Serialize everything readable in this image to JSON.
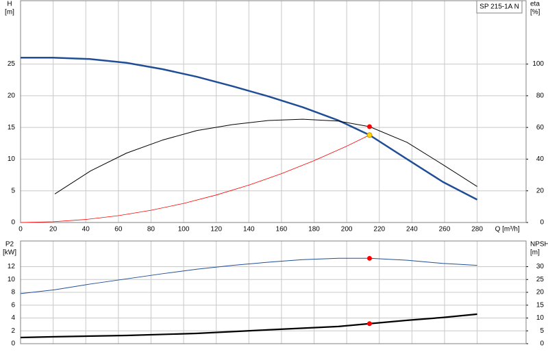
{
  "chart_data": [
    {
      "type": "line",
      "title": "SP 215-1A N",
      "x_label": "Q [m³/h]",
      "y_label": "H",
      "y_unit": "[m]",
      "y2_label": "eta",
      "y2_unit": "[%]",
      "xlim": [
        0,
        310
      ],
      "xticks": [
        0,
        20,
        40,
        60,
        80,
        100,
        120,
        140,
        160,
        180,
        200,
        220,
        240,
        260,
        280
      ],
      "xtick_labels": true,
      "ylim": [
        0,
        35
      ],
      "yticks": [
        0,
        5,
        10,
        15,
        20,
        25
      ],
      "y2lim": [
        0,
        140
      ],
      "y2ticks": [
        0,
        20,
        40,
        60,
        80,
        100
      ],
      "grid": true,
      "series": [
        {
          "color": "#1f4e96",
          "width": 2.5,
          "axis": "y",
          "x": [
            0,
            20,
            42,
            65,
            87,
            108,
            130,
            152,
            173,
            195,
            214,
            237,
            259,
            280
          ],
          "values": [
            26,
            26,
            25.8,
            25.2,
            24.2,
            23,
            21.5,
            19.9,
            18.2,
            16.1,
            13.8,
            10,
            6.4,
            3.6
          ]
        },
        {
          "color": "#000000",
          "width": 1,
          "axis": "y2",
          "x": [
            21,
            43,
            65,
            87,
            108,
            130,
            152,
            173,
            195,
            214,
            237,
            259,
            280
          ],
          "values": [
            18,
            32.6,
            43.8,
            52,
            58,
            61.8,
            64.4,
            65.2,
            64,
            60.5,
            50.6,
            36.5,
            22.7
          ]
        },
        {
          "color": "#ff0000",
          "width": 0.8,
          "axis": "y",
          "x": [
            0,
            20,
            40,
            60,
            80,
            100,
            120,
            140,
            160,
            180,
            200,
            214
          ],
          "values": [
            0,
            0.12,
            0.48,
            1.08,
            1.93,
            3.01,
            4.34,
            5.9,
            7.71,
            9.76,
            12.05,
            13.8
          ]
        }
      ],
      "points": [
        {
          "x": 214,
          "y": 60.5,
          "axis": "y2",
          "color": "#ff0000"
        },
        {
          "x": 214,
          "y": 13.8,
          "axis": "y",
          "color": "#ffd700"
        }
      ]
    },
    {
      "type": "line",
      "y_label": "P2",
      "y_unit": "[kW]",
      "y2_label": "NPSH",
      "y2_unit": "[m]",
      "xlim": [
        0,
        310
      ],
      "xticks": [
        0,
        20,
        40,
        60,
        80,
        100,
        120,
        140,
        160,
        180,
        200,
        220,
        240,
        260,
        280
      ],
      "xtick_labels": false,
      "ylim": [
        0,
        16
      ],
      "yticks": [
        0,
        2,
        4,
        6,
        8,
        10,
        12
      ],
      "y2lim": [
        0,
        40
      ],
      "y2ticks": [
        0,
        5,
        10,
        15,
        20,
        25,
        30
      ],
      "grid": true,
      "series": [
        {
          "color": "#1f4e96",
          "width": 1,
          "axis": "y",
          "x": [
            0,
            21,
            43,
            65,
            87,
            108,
            130,
            152,
            173,
            195,
            214,
            237,
            259,
            280
          ],
          "values": [
            7.8,
            8.4,
            9.3,
            10.1,
            10.9,
            11.6,
            12.2,
            12.7,
            13.1,
            13.3,
            13.3,
            13,
            12.5,
            12.2
          ]
        },
        {
          "color": "#000000",
          "width": 2.2,
          "axis": "y2",
          "x": [
            0,
            21,
            65,
            108,
            152,
            195,
            214,
            237,
            259,
            280
          ],
          "values": [
            2.4,
            2.7,
            3.2,
            4,
            5.4,
            6.7,
            7.8,
            9.1,
            10.2,
            11.5
          ]
        }
      ],
      "points": [
        {
          "x": 214,
          "y": 13.3,
          "axis": "y",
          "color": "#ff0000"
        },
        {
          "x": 214,
          "y": 7.8,
          "axis": "y2",
          "color": "#ff0000"
        }
      ]
    }
  ]
}
